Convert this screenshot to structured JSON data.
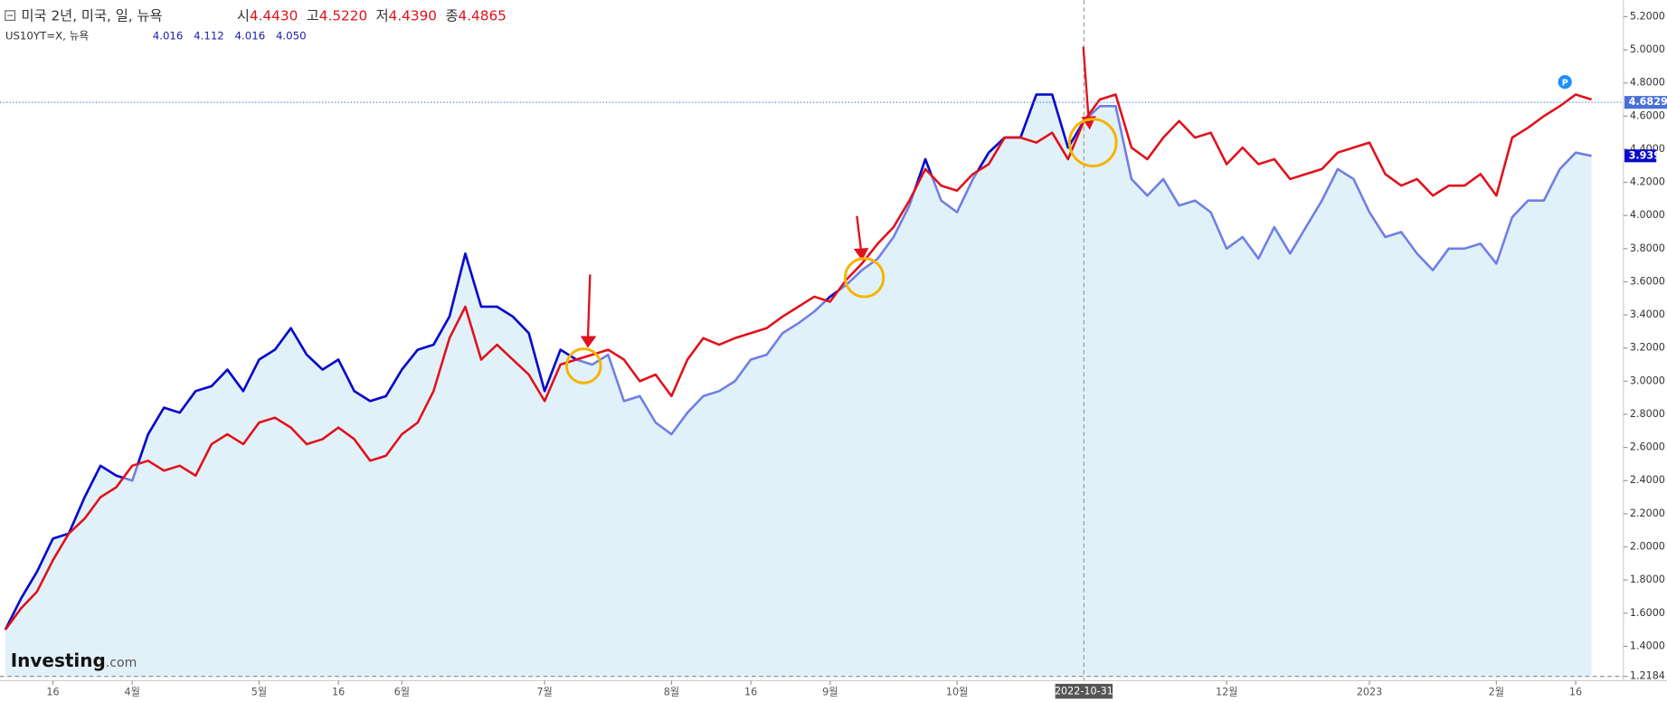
{
  "chart_data": {
    "type": "line",
    "categories": [
      null,
      null,
      null,
      "16",
      null,
      null,
      null,
      null,
      "4월",
      null,
      null,
      null,
      null,
      null,
      null,
      null,
      "5월",
      null,
      null,
      null,
      null,
      "16",
      null,
      null,
      null,
      "6월",
      null,
      null,
      null,
      null,
      null,
      null,
      null,
      null,
      "7월",
      null,
      null,
      null,
      null,
      null,
      null,
      null,
      "8월",
      null,
      null,
      null,
      null,
      "16",
      null,
      null,
      null,
      null,
      "9월",
      null,
      null,
      null,
      null,
      null,
      null,
      null,
      "10월",
      null,
      null,
      null,
      null,
      null,
      null,
      null,
      "2022-10-31",
      null,
      null,
      null,
      null,
      null,
      null,
      null,
      null,
      "12월",
      null,
      null,
      null,
      null,
      null,
      null,
      null,
      null,
      "2023",
      null,
      null,
      null,
      null,
      null,
      null,
      null,
      "2월",
      null,
      null,
      null,
      null,
      "16",
      null
    ],
    "crosshair": "2022-10-31",
    "series": [
      {
        "name": "미국 2년, 미국, 일, 뉴욕",
        "color": "#e0121b",
        "header": [
          {
            "key": "시",
            "value": "4.4430"
          },
          {
            "key": "고",
            "value": "4.5220"
          },
          {
            "key": "저",
            "value": "4.4390"
          },
          {
            "key": "종",
            "value": "4.4865"
          }
        ],
        "values": [
          1.5,
          1.63,
          1.73,
          1.92,
          2.08,
          2.17,
          2.3,
          2.36,
          2.49,
          2.52,
          2.46,
          2.49,
          2.43,
          2.62,
          2.68,
          2.62,
          2.75,
          2.78,
          2.72,
          2.62,
          2.65,
          2.72,
          2.65,
          2.52,
          2.55,
          2.68,
          2.75,
          2.94,
          3.26,
          3.45,
          3.13,
          3.22,
          3.13,
          3.04,
          2.88,
          3.1,
          3.13,
          3.16,
          3.19,
          3.13,
          3.0,
          3.04,
          2.91,
          3.13,
          3.26,
          3.22,
          3.26,
          3.29,
          3.32,
          3.39,
          3.45,
          3.51,
          3.48,
          3.61,
          3.71,
          3.83,
          3.93,
          4.09,
          4.28,
          4.18,
          4.15,
          4.25,
          4.31,
          4.47,
          4.47,
          4.44,
          4.5,
          4.34,
          4.57,
          4.7,
          4.73,
          4.41,
          4.34,
          4.47,
          4.57,
          4.47,
          4.5,
          4.31,
          4.41,
          4.31,
          4.34,
          4.22,
          4.25,
          4.28,
          4.38,
          4.41,
          4.44,
          4.25,
          4.18,
          4.22,
          4.12,
          4.18,
          4.18,
          4.25,
          4.12,
          4.47,
          4.53,
          4.6,
          4.66,
          4.73,
          4.7
        ]
      },
      {
        "name": "US10YT=X, 뉴욕",
        "color": "#0a0ac8",
        "light_color": "#6f7fe6",
        "area_color": "#e1f1f9",
        "header": [
          "4.016",
          "4.112",
          "4.016",
          "4.050"
        ],
        "last_label": "3.939",
        "values": [
          1.5,
          1.69,
          1.85,
          2.05,
          2.08,
          2.3,
          2.49,
          2.43,
          2.4,
          2.68,
          2.84,
          2.81,
          2.94,
          2.97,
          3.07,
          2.94,
          3.13,
          3.19,
          3.32,
          3.16,
          3.07,
          3.13,
          2.94,
          2.88,
          2.91,
          3.07,
          3.19,
          3.22,
          3.39,
          3.77,
          3.45,
          3.45,
          3.39,
          3.29,
          2.94,
          3.19,
          3.13,
          3.1,
          3.16,
          2.88,
          2.91,
          2.75,
          2.68,
          2.81,
          2.91,
          2.94,
          3.0,
          3.13,
          3.16,
          3.29,
          3.35,
          3.42,
          3.51,
          3.58,
          3.67,
          3.74,
          3.87,
          4.06,
          4.34,
          4.09,
          4.02,
          4.22,
          4.38,
          4.47,
          4.47,
          4.73,
          4.73,
          4.41,
          4.57,
          4.66,
          4.66,
          4.22,
          4.12,
          4.22,
          4.06,
          4.09,
          4.02,
          3.8,
          3.87,
          3.74,
          3.93,
          3.77,
          3.93,
          4.09,
          4.28,
          4.22,
          4.02,
          3.87,
          3.9,
          3.77,
          3.67,
          3.8,
          3.8,
          3.83,
          3.71,
          3.99,
          4.09,
          4.09,
          4.28,
          4.38,
          4.36
        ]
      }
    ],
    "ylim": [
      1.2184,
      5.3
    ],
    "yticks": [
      {
        "value": 1.2184,
        "label": "1.2184"
      },
      {
        "value": 1.4,
        "label": "1.4000"
      },
      {
        "value": 1.6,
        "label": "1.6000"
      },
      {
        "value": 1.8,
        "label": "1.8000"
      },
      {
        "value": 2.0,
        "label": "2.0000"
      },
      {
        "value": 2.2,
        "label": "2.2000"
      },
      {
        "value": 2.4,
        "label": "2.4000"
      },
      {
        "value": 2.6,
        "label": "2.6000"
      },
      {
        "value": 2.8,
        "label": "2.8000"
      },
      {
        "value": 3.0,
        "label": "3.0000"
      },
      {
        "value": 3.2,
        "label": "3.2000"
      },
      {
        "value": 3.4,
        "label": "3.4000"
      },
      {
        "value": 3.6,
        "label": "3.6000"
      },
      {
        "value": 3.8,
        "label": "3.8000"
      },
      {
        "value": 4.0,
        "label": "4.0000"
      },
      {
        "value": 4.2,
        "label": "4.2000"
      },
      {
        "value": 4.4,
        "label": "4.4000"
      },
      {
        "value": 4.6,
        "label": "4.6000"
      },
      {
        "value": 4.8,
        "label": "4.8000"
      },
      {
        "value": 5.0,
        "label": "5.0000"
      },
      {
        "value": 5.2,
        "label": "5.2000"
      }
    ],
    "hline": {
      "value": 4.6829,
      "label": "4.6829",
      "color": "#4a6fd8"
    },
    "grid": false,
    "badge": "P",
    "watermark": {
      "brand": "Investing",
      "suffix": ".com"
    }
  }
}
